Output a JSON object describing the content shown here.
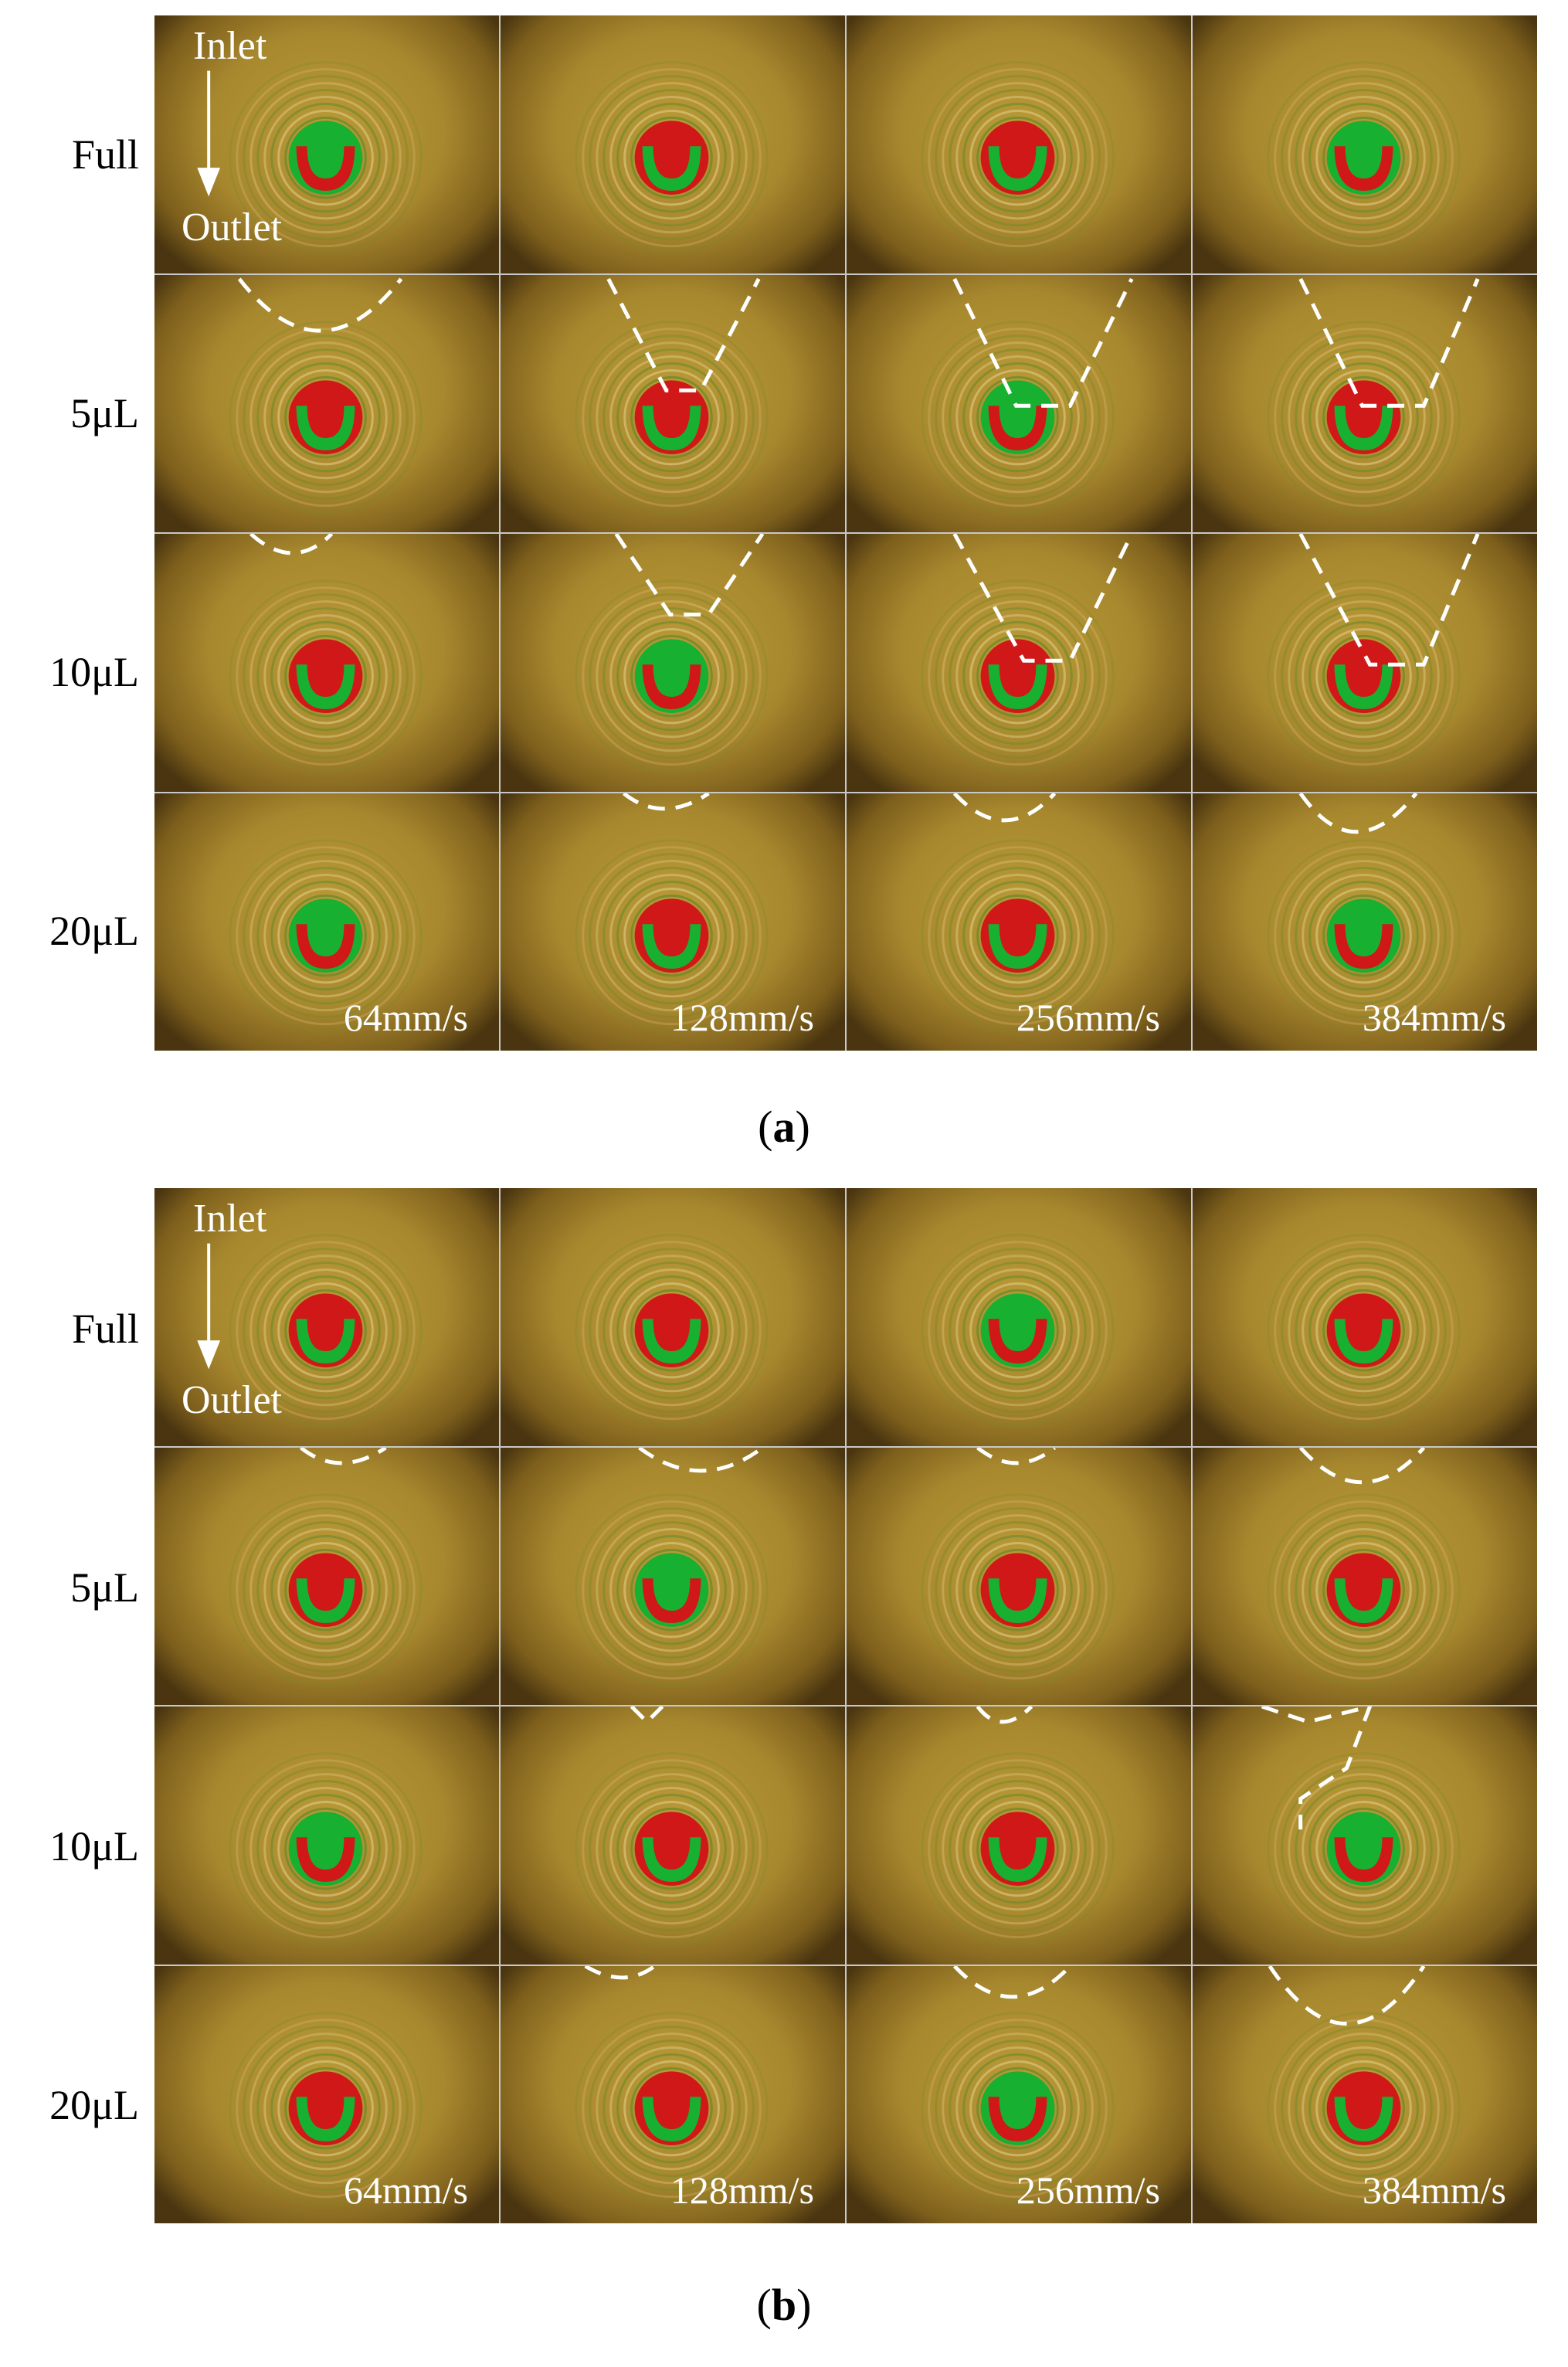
{
  "panels": [
    {
      "caption_letter": "a",
      "row_labels": [
        "Full",
        "5μL",
        "10μL",
        "20μL"
      ],
      "speeds": [
        "64mm/s",
        "128mm/s",
        "256mm/s",
        "384mm/s"
      ],
      "inlet_label": "Inlet",
      "outlet_label": "Outlet"
    },
    {
      "caption_letter": "b",
      "row_labels": [
        "Full",
        "5μL",
        "10μL",
        "20μL"
      ],
      "speeds": [
        "64mm/s",
        "128mm/s",
        "256mm/s",
        "384mm/s"
      ],
      "inlet_label": "Inlet",
      "outlet_label": "Outlet"
    }
  ],
  "colors": {
    "background_amber": "#a8882e",
    "contact_red": "#d01818",
    "contact_green": "#18b030",
    "dashed_boundary": "#ffffff"
  }
}
